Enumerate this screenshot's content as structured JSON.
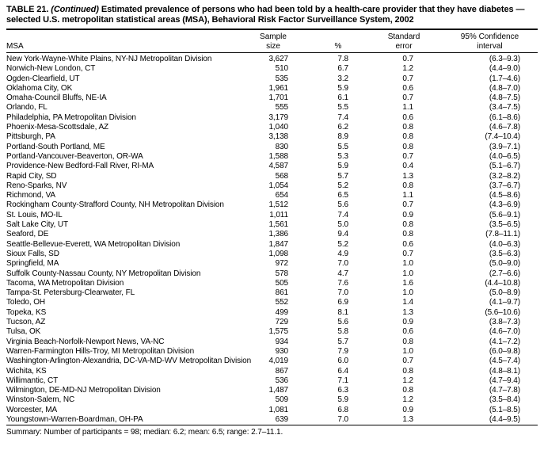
{
  "title": {
    "label": "TABLE 21.",
    "continued": "(Continued)",
    "text": "Estimated prevalence of persons who had been told by a health-care provider that they have diabetes — selected U.S. metropolitan statistical areas (MSA), Behavioral Risk Factor Surveillance System, 2002"
  },
  "table": {
    "columns": [
      "MSA",
      "Sample\nsize",
      "%",
      "Standard\nerror",
      "95% Confidence\ninterval"
    ],
    "rows": [
      [
        "New York-Wayne-White Plains, NY-NJ Metropolitan Division",
        "3,627",
        "7.8",
        "0.7",
        "(6.3–9.3)"
      ],
      [
        "Norwich-New London, CT",
        "510",
        "6.7",
        "1.2",
        "(4.4–9.0)"
      ],
      [
        "Ogden-Clearfield, UT",
        "535",
        "3.2",
        "0.7",
        "(1.7–4.6)"
      ],
      [
        "Oklahoma City, OK",
        "1,961",
        "5.9",
        "0.6",
        "(4.8–7.0)"
      ],
      [
        "Omaha-Council Bluffs, NE-IA",
        "1,701",
        "6.1",
        "0.7",
        "(4.8–7.5)"
      ],
      [
        "Orlando, FL",
        "555",
        "5.5",
        "1.1",
        "(3.4–7.5)"
      ],
      [
        "Philadelphia, PA Metropolitan Division",
        "3,179",
        "7.4",
        "0.6",
        "(6.1–8.6)"
      ],
      [
        "Phoenix-Mesa-Scottsdale, AZ",
        "1,040",
        "6.2",
        "0.8",
        "(4.6–7.8)"
      ],
      [
        "Pittsburgh, PA",
        "3,138",
        "8.9",
        "0.8",
        "(7.4–10.4)"
      ],
      [
        "Portland-South Portland, ME",
        "830",
        "5.5",
        "0.8",
        "(3.9–7.1)"
      ],
      [
        "Portland-Vancouver-Beaverton, OR-WA",
        "1,588",
        "5.3",
        "0.7",
        "(4.0–6.5)"
      ],
      [
        "Providence-New Bedford-Fall River, RI-MA",
        "4,587",
        "5.9",
        "0.4",
        "(5.1–6.7)"
      ],
      [
        "Rapid City, SD",
        "568",
        "5.7",
        "1.3",
        "(3.2–8.2)"
      ],
      [
        "Reno-Sparks, NV",
        "1,054",
        "5.2",
        "0.8",
        "(3.7–6.7)"
      ],
      [
        "Richmond, VA",
        "654",
        "6.5",
        "1.1",
        "(4.5–8.6)"
      ],
      [
        "Rockingham County-Strafford County, NH Metropolitan Division",
        "1,512",
        "5.6",
        "0.7",
        "(4.3–6.9)"
      ],
      [
        "St. Louis, MO-IL",
        "1,011",
        "7.4",
        "0.9",
        "(5.6–9.1)"
      ],
      [
        "Salt Lake City, UT",
        "1,561",
        "5.0",
        "0.8",
        "(3.5–6.5)"
      ],
      [
        "Seaford, DE",
        "1,386",
        "9.4",
        "0.8",
        "(7.8–11.1)"
      ],
      [
        "Seattle-Bellevue-Everett, WA Metropolitan Division",
        "1,847",
        "5.2",
        "0.6",
        "(4.0–6.3)"
      ],
      [
        "Sioux Falls, SD",
        "1,098",
        "4.9",
        "0.7",
        "(3.5–6.3)"
      ],
      [
        "Springfield, MA",
        "972",
        "7.0",
        "1.0",
        "(5.0–9.0)"
      ],
      [
        "Suffolk County-Nassau County, NY Metropolitan Division",
        "578",
        "4.7",
        "1.0",
        "(2.7–6.6)"
      ],
      [
        "Tacoma, WA Metropolitan Division",
        "505",
        "7.6",
        "1.6",
        "(4.4–10.8)"
      ],
      [
        "Tampa-St. Petersburg-Clearwater, FL",
        "861",
        "7.0",
        "1.0",
        "(5.0–8.9)"
      ],
      [
        "Toledo, OH",
        "552",
        "6.9",
        "1.4",
        "(4.1–9.7)"
      ],
      [
        "Topeka, KS",
        "499",
        "8.1",
        "1.3",
        "(5.6–10.6)"
      ],
      [
        "Tucson, AZ",
        "729",
        "5.6",
        "0.9",
        "(3.8–7.3)"
      ],
      [
        "Tulsa, OK",
        "1,575",
        "5.8",
        "0.6",
        "(4.6–7.0)"
      ],
      [
        "Virginia Beach-Norfolk-Newport News, VA-NC",
        "934",
        "5.7",
        "0.8",
        "(4.1–7.2)"
      ],
      [
        "Warren-Farmington Hills-Troy, MI Metropolitan Division",
        "930",
        "7.9",
        "1.0",
        "(6.0–9.8)"
      ],
      [
        "Washington-Arlington-Alexandria, DC-VA-MD-WV Metropolitan Division",
        "4,019",
        "6.0",
        "0.7",
        "(4.5–7.4)"
      ],
      [
        "Wichita, KS",
        "867",
        "6.4",
        "0.8",
        "(4.8–8.1)"
      ],
      [
        "Willimantic, CT",
        "536",
        "7.1",
        "1.2",
        "(4.7–9.4)"
      ],
      [
        "Wilmington, DE-MD-NJ Metropolitan Division",
        "1,487",
        "6.3",
        "0.8",
        "(4.7–7.8)"
      ],
      [
        "Winston-Salem, NC",
        "509",
        "5.9",
        "1.2",
        "(3.5–8.4)"
      ],
      [
        "Worcester, MA",
        "1,081",
        "6.8",
        "0.9",
        "(5.1–8.5)"
      ],
      [
        "Youngstown-Warren-Boardman, OH-PA",
        "639",
        "7.0",
        "1.3",
        "(4.4–9.5)"
      ]
    ]
  },
  "summary": "Summary: Number of participants = 98; median: 6.2; mean: 6.5; range: 2.7–11.1."
}
